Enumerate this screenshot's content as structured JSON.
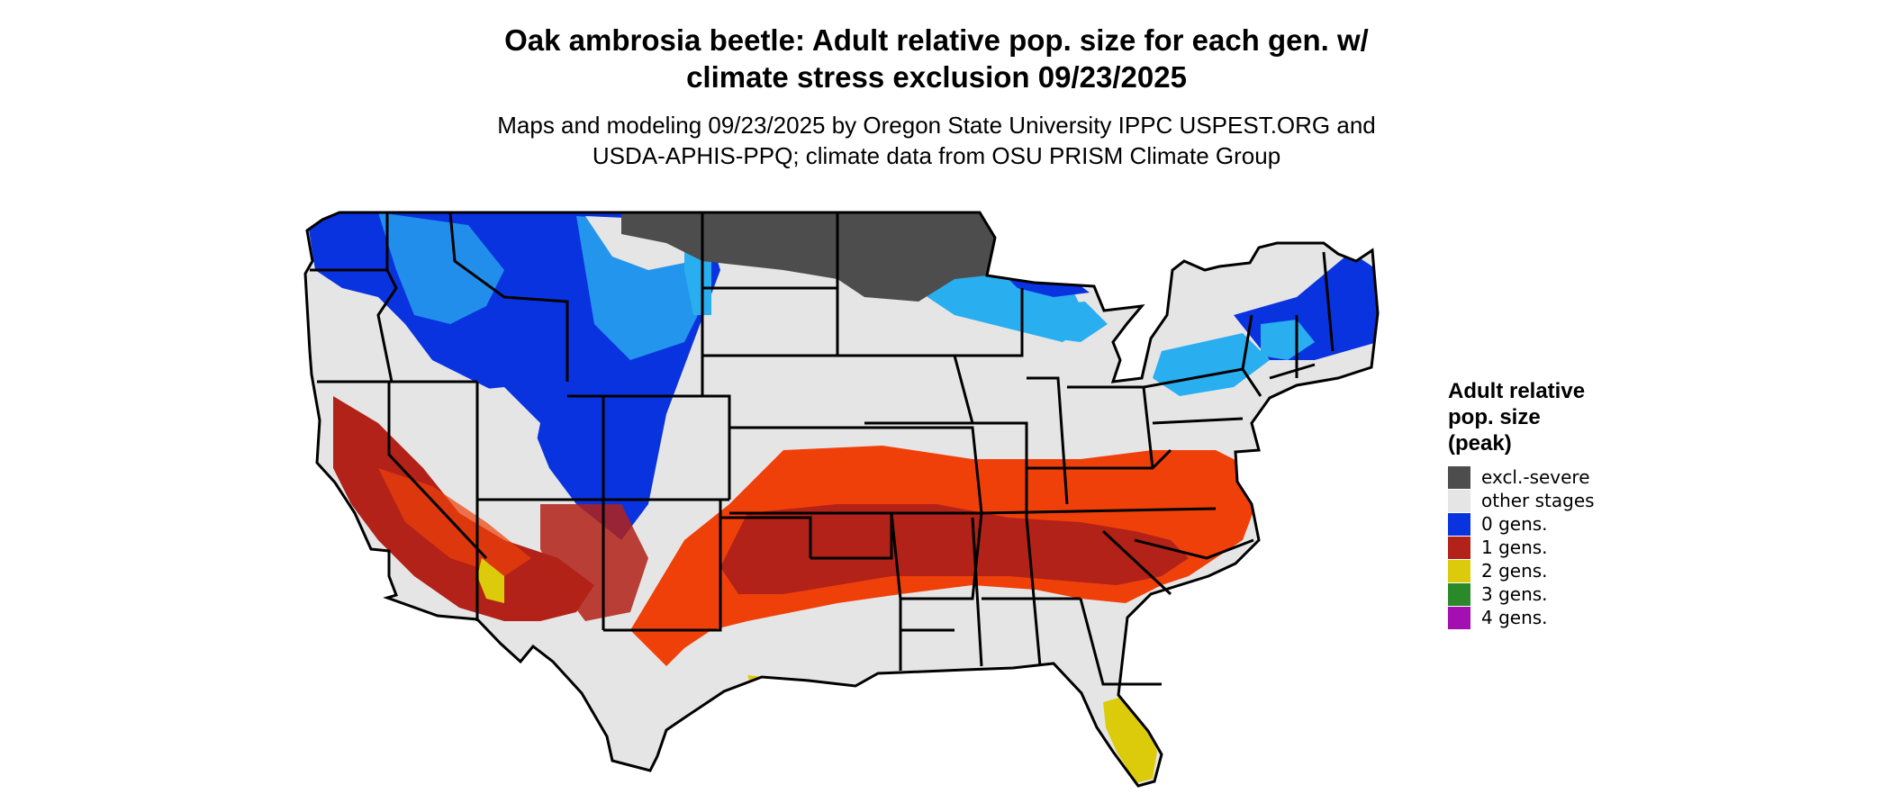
{
  "title_line1": "Oak ambrosia beetle: Adult relative pop. size for each gen. w/",
  "title_line2": "climate stress exclusion 09/23/2025",
  "subtitle_line1": "Maps and modeling 09/23/2025 by Oregon State University IPPC USPEST.ORG and",
  "subtitle_line2": "USDA-APHIS-PPQ; climate data from OSU PRISM Climate Group",
  "legend": {
    "title_line1": "Adult relative",
    "title_line2": "pop. size",
    "title_line3": "(peak)",
    "items": [
      {
        "label": "excl.-severe",
        "color": "#4d4d4d"
      },
      {
        "label": "other stages",
        "color": "#e5e5e5"
      },
      {
        "label": "0 gens.",
        "color": "#0a33e0"
      },
      {
        "label": "1 gens.",
        "color": "#b22218"
      },
      {
        "label": "2 gens.",
        "color": "#dccb0a"
      },
      {
        "label": "3 gens.",
        "color": "#2a8a2a"
      },
      {
        "label": "4 gens.",
        "color": "#a30fb0"
      }
    ]
  },
  "map_colors": {
    "background": "#e5e5e5",
    "excluded": "#4d4d4d",
    "zero_gens": "#0a33e0",
    "zero_gens_light": "#29aef0",
    "one_gens": "#b22218",
    "one_gens_bright": "#f0400a",
    "two_gens": "#dccb0a",
    "border": "#000000"
  }
}
